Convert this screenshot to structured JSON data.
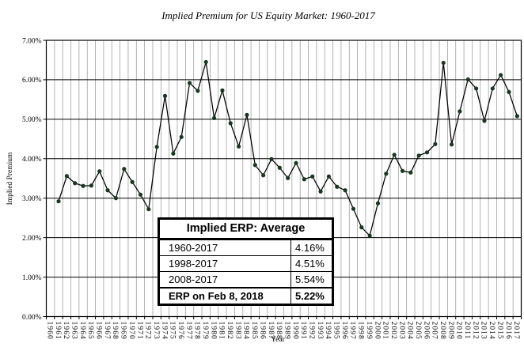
{
  "chart_data": {
    "type": "line",
    "title": "Implied Premium for US Equity Market: 1960-2017",
    "xlabel": "Year",
    "ylabel": "Implied Premium",
    "ylim": [
      0,
      7
    ],
    "ytick_step": 1,
    "ytick_format": "0.00%",
    "grid": {
      "horizontal": true,
      "vertical": true
    },
    "legend": "none",
    "categories": [
      "1960",
      "1961",
      "1962",
      "1963",
      "1964",
      "1965",
      "1966",
      "1967",
      "1968",
      "1969",
      "1970",
      "1971",
      "1972",
      "1973",
      "1974",
      "1975",
      "1976",
      "1977",
      "1978",
      "1979",
      "1980",
      "1981",
      "1982",
      "1983",
      "1984",
      "1985",
      "1986",
      "1987",
      "1988",
      "1989",
      "1990",
      "1991",
      "1992",
      "1993",
      "1994",
      "1995",
      "1996",
      "1997",
      "1998",
      "1999",
      "2000",
      "2001",
      "2002",
      "2003",
      "2004",
      "2005",
      "2006",
      "2007",
      "2008",
      "2009",
      "2010",
      "2011",
      "2012",
      "2013",
      "2014",
      "2015",
      "2016",
      "2017"
    ],
    "series": [
      {
        "name": "Implied Premium",
        "years": [
          1961,
          1962,
          1963,
          1964,
          1965,
          1966,
          1967,
          1968,
          1969,
          1970,
          1971,
          1972,
          1973,
          1974,
          1975,
          1976,
          1977,
          1978,
          1979,
          1980,
          1981,
          1982,
          1983,
          1984,
          1985,
          1986,
          1987,
          1988,
          1989,
          1990,
          1991,
          1992,
          1993,
          1994,
          1995,
          1996,
          1997,
          1998,
          1999,
          2000,
          2001,
          2002,
          2003,
          2004,
          2005,
          2006,
          2007,
          2008,
          2009,
          2010,
          2011,
          2012,
          2013,
          2014,
          2015,
          2016,
          2017
        ],
        "values": [
          2.92,
          3.56,
          3.38,
          3.31,
          3.32,
          3.68,
          3.2,
          3.0,
          3.74,
          3.41,
          3.09,
          2.72,
          4.3,
          5.59,
          4.13,
          4.55,
          5.92,
          5.72,
          6.45,
          5.03,
          5.73,
          4.9,
          4.31,
          5.11,
          3.84,
          3.58,
          3.99,
          3.77,
          3.51,
          3.89,
          3.48,
          3.55,
          3.17,
          3.55,
          3.29,
          3.2,
          2.73,
          2.26,
          2.05,
          2.87,
          3.62,
          4.1,
          3.69,
          3.65,
          4.08,
          4.16,
          4.37,
          6.43,
          4.36,
          5.2,
          6.01,
          5.78,
          4.96,
          5.78,
          6.12,
          5.69,
          5.08
        ]
      }
    ],
    "colors": {
      "line": "#000000",
      "marker": "#17391f",
      "vgrid": "#a0a0a0",
      "hgrid": "#000000",
      "border": "#000000",
      "background": "#ffffff"
    }
  },
  "overlay_table": {
    "header": "Implied ERP: Average",
    "rows": [
      {
        "label": "1960-2017",
        "value": "4.16%"
      },
      {
        "label": "1998-2017",
        "value": "4.51%"
      },
      {
        "label": "2008-2017",
        "value": "5.54%"
      },
      {
        "label": "ERP on Feb 8, 2018",
        "value": "5.22%"
      }
    ]
  }
}
